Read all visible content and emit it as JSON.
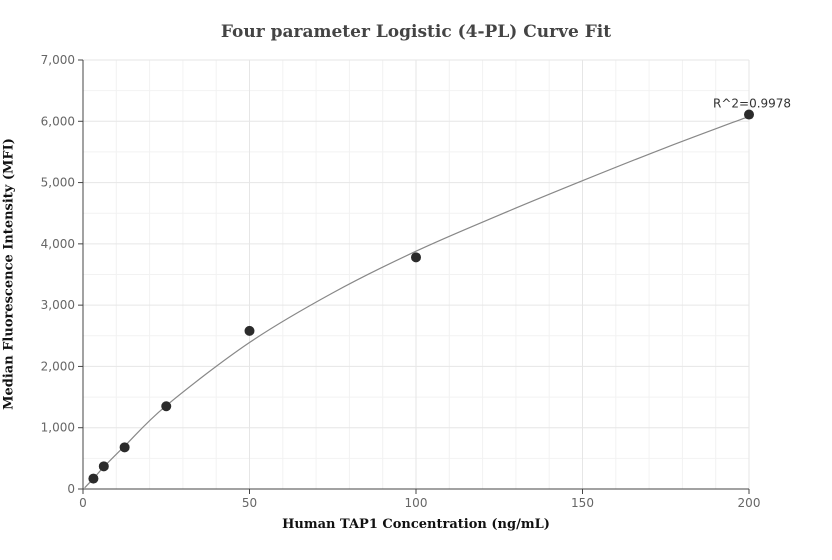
{
  "chart_data": {
    "type": "scatter",
    "title": "Four parameter Logistic (4-PL) Curve Fit",
    "xlabel": "Human TAP1 Concentration (ng/mL)",
    "ylabel": "Median Fluorescence Intensity (MFI)",
    "xlim": [
      0,
      200
    ],
    "ylim": [
      0,
      7000
    ],
    "x_ticks": [
      0,
      50,
      100,
      150,
      200
    ],
    "x_tick_labels": [
      "0",
      "50",
      "100",
      "150",
      "200"
    ],
    "y_ticks": [
      0,
      1000,
      2000,
      3000,
      4000,
      5000,
      6000,
      7000
    ],
    "y_tick_labels": [
      "0",
      "1,000",
      "2,000",
      "3,000",
      "4,000",
      "5,000",
      "6,000",
      "7,000"
    ],
    "grid": true,
    "points": {
      "x": [
        3.125,
        6.25,
        12.5,
        25,
        50,
        100,
        200
      ],
      "y": [
        170,
        370,
        680,
        1350,
        2580,
        3780,
        6110
      ]
    },
    "fit_curve": {
      "x": [
        0.5,
        3.125,
        6.25,
        12.5,
        25,
        50,
        75,
        100,
        125,
        150,
        175,
        200
      ],
      "y": [
        20,
        170,
        360,
        700,
        1360,
        2390,
        3200,
        3880,
        4470,
        5030,
        5570,
        6080
      ]
    },
    "annotation": {
      "text": "R^2=0.9978",
      "x": 200,
      "y": 6110
    },
    "colors": {
      "points": "#2b2b2b",
      "curve": "#888888",
      "grid": "#e6e6e6",
      "axis": "#444444"
    }
  }
}
